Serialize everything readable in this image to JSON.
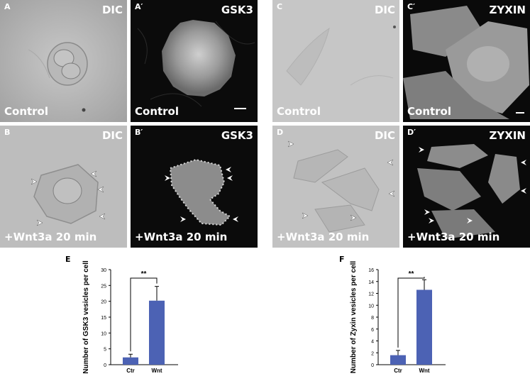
{
  "panels": [
    {
      "letter": "A",
      "channel": "DIC",
      "condition": "Control"
    },
    {
      "letter": "A′",
      "channel": "GSK3",
      "condition": "Control"
    },
    {
      "letter": "C",
      "channel": "DIC",
      "condition": "Control"
    },
    {
      "letter": "C′",
      "channel": "ZYXIN",
      "condition": "Control"
    },
    {
      "letter": "B",
      "channel": "DIC",
      "condition": "+Wnt3a 20 min"
    },
    {
      "letter": "B′",
      "channel": "GSK3",
      "condition": "+Wnt3a 20 min"
    },
    {
      "letter": "D",
      "channel": "DIC",
      "condition": "+Wnt3a 20 min"
    },
    {
      "letter": "D′",
      "channel": "ZYXIN",
      "condition": "+Wnt3a 20 min"
    }
  ],
  "chart_data": [
    {
      "type": "bar",
      "panel_letter": "E",
      "categories": [
        "Ctr",
        "Wnt"
      ],
      "values": [
        2.3,
        20.2
      ],
      "errors": [
        1.0,
        4.5
      ],
      "ylabel": "Number of GSK3 vesicles per cell",
      "ylim": [
        0,
        30
      ],
      "yticks": [
        "0",
        "5",
        "10",
        "15",
        "20",
        "25",
        "30"
      ],
      "significance": "**",
      "bar_color": "#4c62b4"
    },
    {
      "type": "bar",
      "panel_letter": "F",
      "categories": [
        "Ctr",
        "Wnt"
      ],
      "values": [
        1.6,
        12.6
      ],
      "errors": [
        0.8,
        1.7
      ],
      "ylabel": "Number of Zyxin vesicles per cell",
      "ylim": [
        0,
        16
      ],
      "yticks": [
        "0",
        "2",
        "4",
        "6",
        "8",
        "10",
        "12",
        "14",
        "16"
      ],
      "significance": "**",
      "bar_color": "#4c62b4"
    }
  ]
}
